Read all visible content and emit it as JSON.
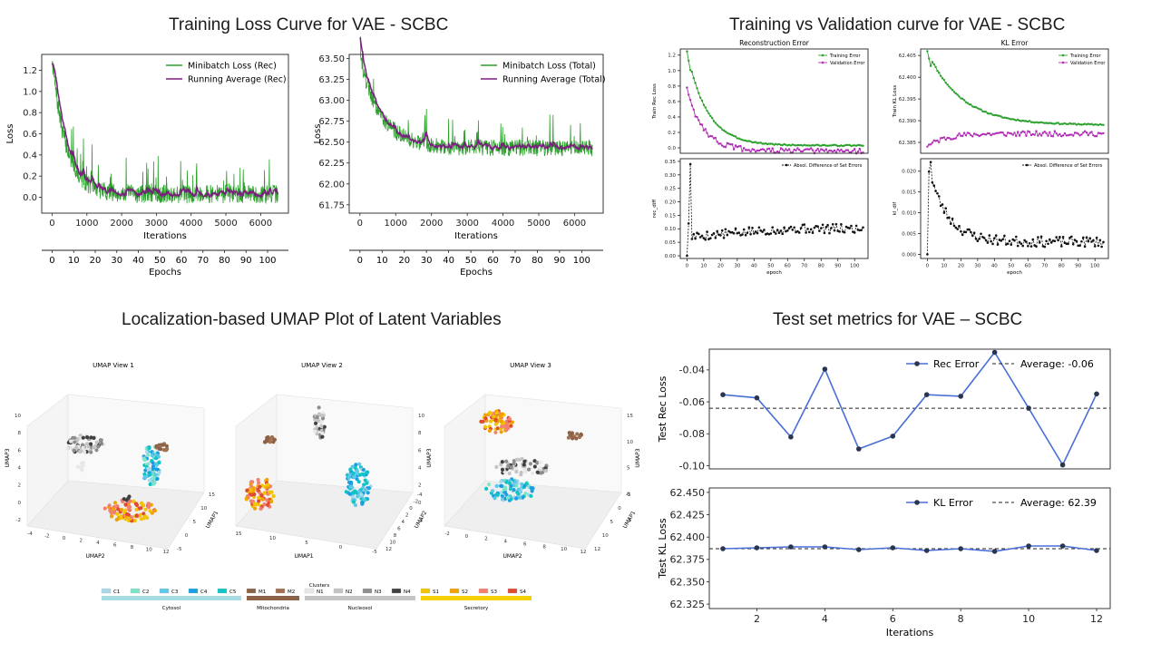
{
  "section_titles": {
    "training_loss": "Training Loss Curve for VAE - SCBC",
    "train_val": "Training vs Validation curve for VAE - SCBC",
    "umap": "Localization-based UMAP Plot of Latent Variables",
    "test_metrics": "Test set metrics for VAE – SCBC"
  },
  "chart_data": [
    {
      "id": "loss-rec",
      "type": "line",
      "xlabel": "Iterations",
      "ylabel": "Loss",
      "secondary_xlabel": "Epochs",
      "xlim": [
        -300,
        6800
      ],
      "ylim": [
        -0.15,
        1.35
      ],
      "xticks": [
        0,
        1000,
        2000,
        3000,
        4000,
        5000,
        6000
      ],
      "yticks": [
        0.0,
        0.2,
        0.4,
        0.6,
        0.8,
        1.0,
        1.2
      ],
      "epoch_ticks": [
        0,
        10,
        20,
        30,
        40,
        50,
        60,
        70,
        80,
        90,
        100
      ],
      "legend_placement": "top-right",
      "series": [
        {
          "name": "Minibatch Loss (Rec)",
          "color": "#2ca02c"
        },
        {
          "name": "Running Average (Rec)",
          "color": "#7b1f7e"
        }
      ],
      "curve": {
        "start": 1.3,
        "end": 0.03,
        "tau": 400,
        "noise": 0.08
      }
    },
    {
      "id": "loss-total",
      "type": "line",
      "xlabel": "Iterations",
      "ylabel": "Loss",
      "secondary_xlabel": "Epochs",
      "xlim": [
        -300,
        6800
      ],
      "ylim": [
        61.65,
        63.55
      ],
      "xticks": [
        0,
        1000,
        2000,
        3000,
        4000,
        5000,
        6000
      ],
      "yticks": [
        61.75,
        62.0,
        62.25,
        62.5,
        62.75,
        63.0,
        63.25,
        63.5
      ],
      "epoch_ticks": [
        0,
        10,
        20,
        30,
        40,
        50,
        60,
        70,
        80,
        90,
        100
      ],
      "legend_placement": "top-right",
      "series": [
        {
          "name": "Minibatch Loss (Total)",
          "color": "#2ca02c"
        },
        {
          "name": "Running Average (Total)",
          "color": "#7b1f7e"
        }
      ],
      "curve": {
        "start": 63.5,
        "end": 62.43,
        "tau": 600,
        "noise": 0.09
      }
    },
    {
      "id": "recon-error",
      "type": "line",
      "title": "Reconstruction Error",
      "xlabel": "",
      "ylabel": "Train Rec Loss",
      "xlim": [
        -4,
        108
      ],
      "ylim": [
        -0.07,
        1.28
      ],
      "yticks": [
        0.0,
        0.2,
        0.4,
        0.6,
        0.8,
        1.0,
        1.2
      ],
      "legend_placement": "top-right",
      "series": [
        {
          "name": "Training Error",
          "color": "#2ca02c",
          "start": 1.25,
          "end": 0.03,
          "tau": 12
        },
        {
          "name": "Validation Error",
          "color": "#b02eb5",
          "start": 0.75,
          "end": -0.04,
          "tau": 10
        }
      ]
    },
    {
      "id": "kl-error",
      "type": "line",
      "title": "KL Error",
      "xlabel": "",
      "ylabel": "Train KL Loss",
      "xlim": [
        -4,
        108
      ],
      "ylim": [
        62.3825,
        62.4065
      ],
      "yticks": [
        62.385,
        62.39,
        62.395,
        62.4,
        62.405
      ],
      "legend_placement": "top-right",
      "series": [
        {
          "name": "Training Error",
          "color": "#2ca02c",
          "start": 62.406,
          "end": 62.389,
          "tau": 20
        },
        {
          "name": "Validation Error",
          "color": "#b02eb5",
          "start": 62.384,
          "end": 62.387,
          "tau": 10
        }
      ]
    },
    {
      "id": "rec-diff",
      "type": "line",
      "xlabel": "epoch",
      "ylabel": "rec_diff",
      "xlim": [
        -4,
        108
      ],
      "ylim": [
        -0.01,
        0.36
      ],
      "xticks": [
        0,
        10,
        20,
        30,
        40,
        50,
        60,
        70,
        80,
        90,
        100
      ],
      "yticks": [
        0.0,
        0.05,
        0.1,
        0.15,
        0.2,
        0.25,
        0.3,
        0.35
      ],
      "legend_placement": "top-right",
      "series": [
        {
          "name": "Absol. Difference of Set Errors",
          "color": "#111111"
        }
      ]
    },
    {
      "id": "kl-diff",
      "type": "line",
      "xlabel": "epoch",
      "ylabel": "kl_dif",
      "xlim": [
        -4,
        108
      ],
      "ylim": [
        -0.001,
        0.023
      ],
      "xticks": [
        0,
        10,
        20,
        30,
        40,
        50,
        60,
        70,
        80,
        90,
        100
      ],
      "yticks": [
        0.0,
        0.005,
        0.01,
        0.015,
        0.02
      ],
      "legend_placement": "top-right",
      "series": [
        {
          "name": "Absol. Difference of Set Errors",
          "color": "#111111"
        }
      ]
    },
    {
      "id": "umap",
      "type": "scatter",
      "views": [
        {
          "title": "UMAP View 1",
          "xlabel": "UMAP2",
          "ylabel": "UMAP1",
          "zlabel": "UMAP3",
          "xticks": [
            -4,
            -2,
            0,
            2,
            4,
            6,
            8,
            10,
            12
          ],
          "yticks": [
            -5,
            0,
            5,
            10,
            15
          ],
          "zticks": [
            -2,
            0,
            2,
            4,
            6,
            8,
            10
          ]
        },
        {
          "title": "UMAP View 2",
          "xlabel": "UMAP1",
          "ylabel": "UMAP2",
          "zlabel": "UMAP3",
          "xticks": [
            15,
            10,
            5,
            0,
            -5
          ],
          "yticks": [
            12,
            10,
            8,
            6,
            4,
            2,
            0,
            -2,
            -4
          ],
          "zticks": [
            -2,
            0,
            2,
            4,
            6,
            8,
            10
          ]
        },
        {
          "title": "UMAP View 3",
          "xlabel": "UMAP2",
          "ylabel": "UMAP1",
          "zlabel": "UMAP3",
          "xticks": [
            -2,
            0,
            2,
            4,
            6,
            8,
            10,
            12
          ],
          "yticks": [
            12,
            10,
            5,
            0,
            -5
          ],
          "zticks": [
            -5,
            0,
            5,
            10,
            15
          ]
        }
      ],
      "legend_title": "Clusters",
      "clusters": [
        {
          "label": "C1",
          "color": "#a8d8ea"
        },
        {
          "label": "C2",
          "color": "#7fe3c8"
        },
        {
          "label": "C3",
          "color": "#5ec8e8"
        },
        {
          "label": "C4",
          "color": "#1a9fe0"
        },
        {
          "label": "C5",
          "color": "#0fc4c4"
        },
        {
          "label": "M1",
          "color": "#8b6248"
        },
        {
          "label": "M2",
          "color": "#a07050"
        },
        {
          "label": "N1",
          "color": "#e8e8e8"
        },
        {
          "label": "N2",
          "color": "#c4c4c4"
        },
        {
          "label": "N3",
          "color": "#8e8e8e"
        },
        {
          "label": "N4",
          "color": "#404040"
        },
        {
          "label": "S1",
          "color": "#f2c500"
        },
        {
          "label": "S2",
          "color": "#f2a200"
        },
        {
          "label": "S3",
          "color": "#f28070"
        },
        {
          "label": "S4",
          "color": "#e04a30"
        }
      ],
      "groups": [
        {
          "label": "Cytosol",
          "color": "#a8dce3",
          "count": 5
        },
        {
          "label": "Mitochondria",
          "color": "#8b6248",
          "count": 2
        },
        {
          "label": "Nucleosol",
          "color": "#c4c4c4",
          "count": 4
        },
        {
          "label": "Secretory",
          "color": "#f5d000",
          "count": 4
        }
      ]
    },
    {
      "id": "test-rec",
      "type": "line",
      "ylabel": "Test Rec Loss",
      "xlim": [
        0.6,
        12.4
      ],
      "ylim": [
        -0.102,
        -0.027
      ],
      "yticks": [
        -0.04,
        -0.06,
        -0.08,
        -0.1
      ],
      "x": [
        1,
        2,
        3,
        4,
        5,
        6,
        7,
        8,
        9,
        10,
        11,
        12
      ],
      "series": [
        {
          "name": "Rec Error",
          "color": "#4a6fd8",
          "values": [
            -0.0555,
            -0.0575,
            -0.082,
            -0.0395,
            -0.0895,
            -0.0815,
            -0.0555,
            -0.0565,
            -0.029,
            -0.064,
            -0.0995,
            -0.055
          ]
        }
      ],
      "average": {
        "label": "Average: -0.06",
        "value": -0.064
      },
      "legend_placement": "top-right"
    },
    {
      "id": "test-kl",
      "type": "line",
      "ylabel": "Test KL Loss",
      "xlabel": "Iterations",
      "xlim": [
        0.6,
        12.4
      ],
      "ylim": [
        62.32,
        62.455
      ],
      "xticks": [
        2,
        4,
        6,
        8,
        10,
        12
      ],
      "yticks": [
        62.325,
        62.35,
        62.375,
        62.4,
        62.425,
        62.45
      ],
      "x": [
        1,
        2,
        3,
        4,
        5,
        6,
        7,
        8,
        9,
        10,
        11,
        12
      ],
      "series": [
        {
          "name": "KL Error",
          "color": "#4a6fd8",
          "values": [
            62.387,
            62.388,
            62.389,
            62.389,
            62.386,
            62.388,
            62.385,
            62.387,
            62.384,
            62.39,
            62.39,
            62.385
          ]
        }
      ],
      "average": {
        "label": "Average: 62.39",
        "value": 62.387
      },
      "legend_placement": "top-right"
    }
  ]
}
